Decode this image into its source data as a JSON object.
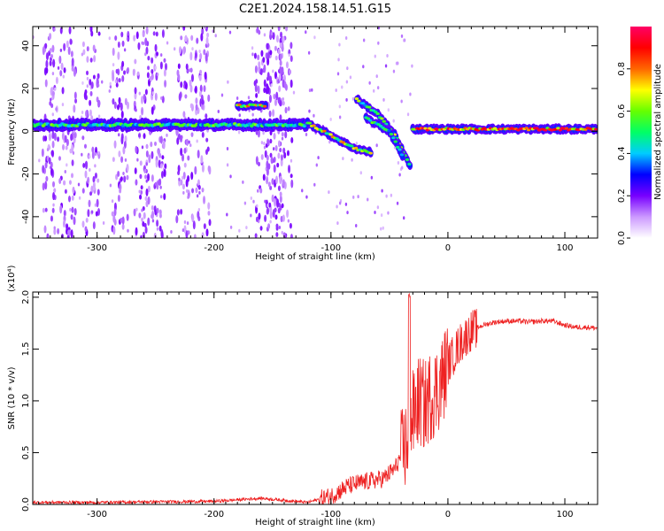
{
  "figure": {
    "title": "C2E1.2024.158.14.51.G15"
  },
  "chart_data": [
    {
      "type": "heatmap",
      "xlabel": "Height of straight line (km)",
      "ylabel": "Frequency (Hz)",
      "xlim": [
        -355,
        128
      ],
      "ylim": [
        -50,
        49
      ],
      "xticks": [
        -300,
        -200,
        -100,
        0,
        100
      ],
      "yticks": [
        -40,
        -20,
        0,
        20,
        40
      ],
      "colorbar": {
        "label": "Normalized spectral amplitude",
        "range": [
          0.0,
          1.0
        ],
        "ticks": [
          0.0,
          0.2,
          0.4,
          0.6,
          0.8
        ],
        "tick_labels": [
          "0.0",
          "0.2",
          "0.4",
          "0.6",
          "0.8"
        ],
        "colormap": [
          "#ffffff",
          "#cc99ff",
          "#7700ff",
          "#0000ff",
          "#00ccff",
          "#00ff66",
          "#66ff00",
          "#ffff00",
          "#ff6600",
          "#ff0000",
          "#ff0066"
        ]
      },
      "features": [
        {
          "name": "main-band",
          "x_range": [
            -355,
            -120
          ],
          "freq": 3,
          "width": 4,
          "intensity": 0.55
        },
        {
          "name": "upper-patch",
          "x_range": [
            -180,
            -155
          ],
          "freq": 12,
          "width": 3,
          "intensity": 0.75
        },
        {
          "name": "descending-branch-1",
          "points": [
            [
              -120,
              4
            ],
            [
              -100,
              -2
            ],
            [
              -80,
              -8
            ],
            [
              -65,
              -10
            ]
          ],
          "intensity": 0.7
        },
        {
          "name": "descending-branch-2",
          "points": [
            [
              -78,
              15
            ],
            [
              -60,
              8
            ],
            [
              -45,
              -2
            ],
            [
              -32,
              -17
            ]
          ],
          "intensity": 0.6
        },
        {
          "name": "descending-branch-3",
          "points": [
            [
              -70,
              6
            ],
            [
              -50,
              0
            ],
            [
              -38,
              -12
            ]
          ],
          "intensity": 0.55
        },
        {
          "name": "carrier-line",
          "x_range": [
            -30,
            128
          ],
          "freq": 1,
          "width": 3,
          "intensity": 0.95
        }
      ],
      "noise_columns_x": [
        -340,
        -325,
        -305,
        -280,
        -262,
        -248,
        -225,
        -210,
        -158,
        -148,
        -140
      ]
    },
    {
      "type": "line",
      "xlabel": "Height of straight line (km)",
      "ylabel": "SNR (10 * v/v)",
      "y_multiplier": "(x10⁴)",
      "xlim": [
        -355,
        128
      ],
      "ylim": [
        0,
        2.05
      ],
      "xticks": [
        -300,
        -200,
        -100,
        0,
        100
      ],
      "yticks": [
        0.0,
        0.5,
        1.0,
        1.5,
        2.0
      ],
      "ytick_labels": [
        "0.0",
        "0.5",
        "1.0",
        "1.5",
        "2.0"
      ],
      "color": "#ee2222",
      "x": [
        -355,
        -300,
        -200,
        -160,
        -120,
        -100,
        -85,
        -70,
        -55,
        -45,
        -35,
        -30,
        -25,
        -20,
        -15,
        -10,
        -5,
        0,
        10,
        20,
        30,
        40,
        50,
        60,
        70,
        80,
        90,
        100,
        110,
        120,
        128
      ],
      "y": [
        0.02,
        0.02,
        0.03,
        0.06,
        0.02,
        0.08,
        0.18,
        0.22,
        0.25,
        0.35,
        0.6,
        0.85,
        1.0,
        0.95,
        1.05,
        1.1,
        1.2,
        1.35,
        1.55,
        1.68,
        1.73,
        1.76,
        1.77,
        1.77,
        1.76,
        1.77,
        1.77,
        1.73,
        1.71,
        1.71,
        1.7
      ]
    }
  ]
}
